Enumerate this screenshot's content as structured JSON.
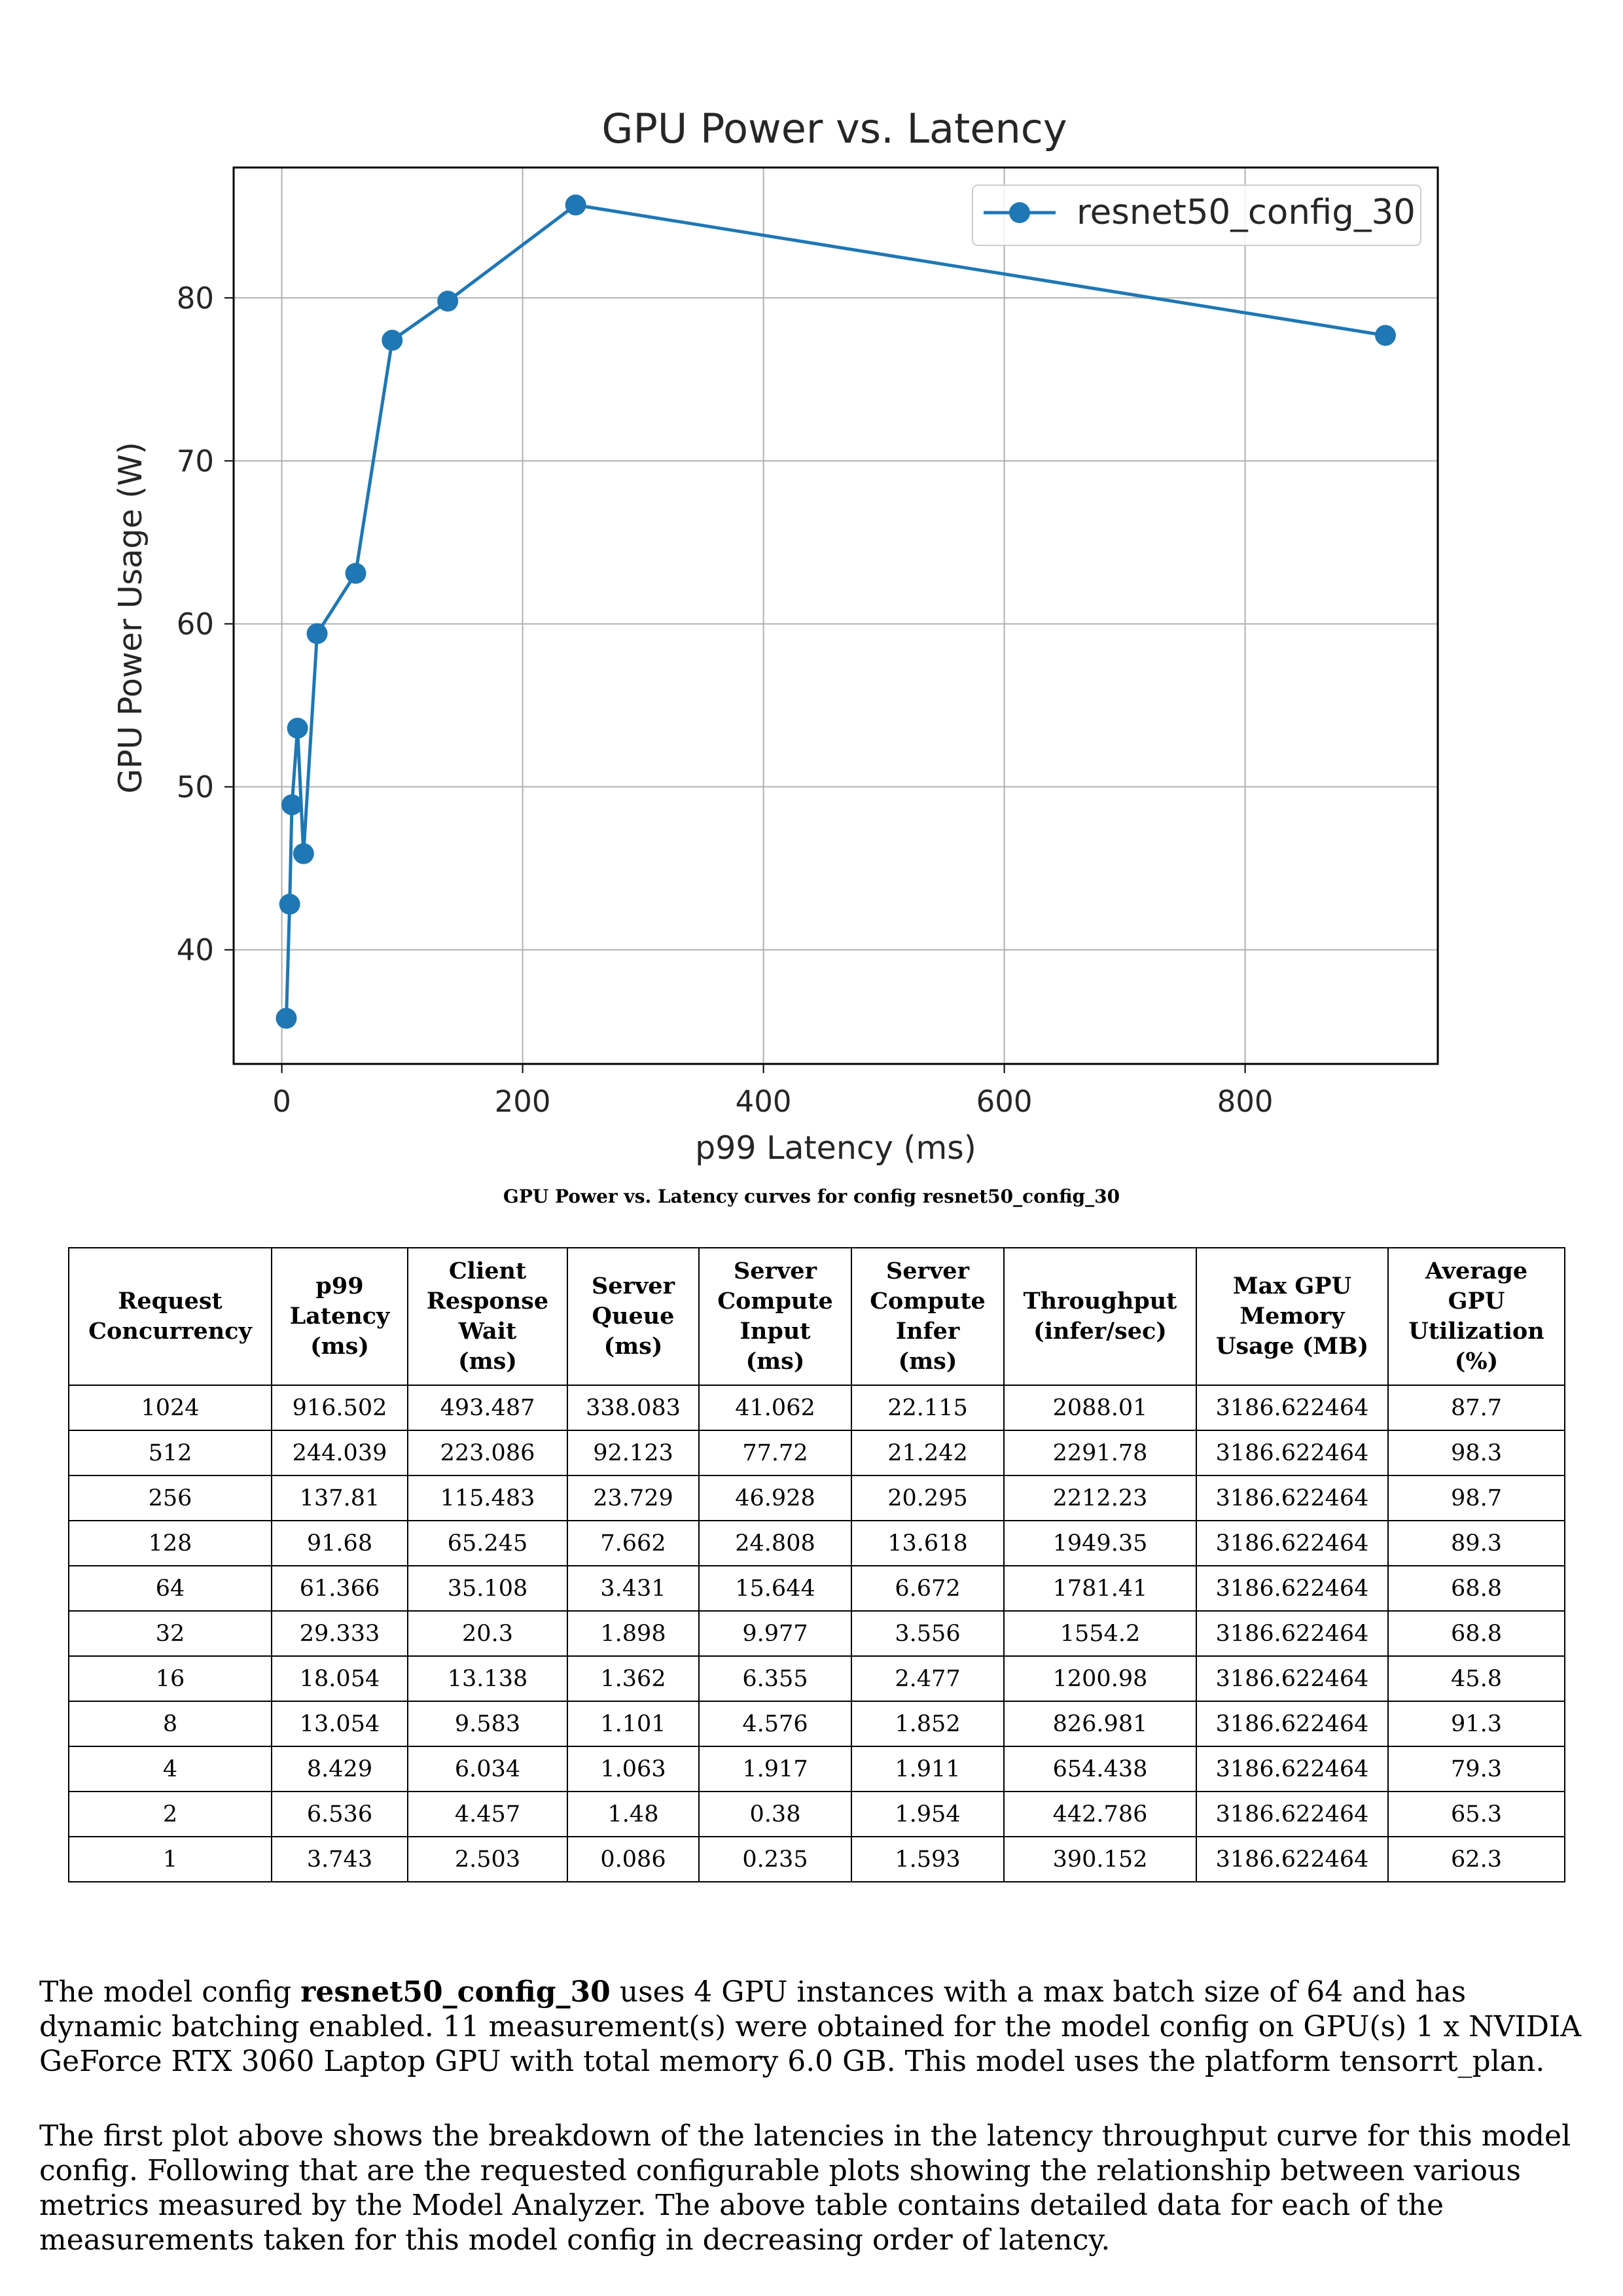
{
  "chart_data": {
    "type": "line",
    "title": "GPU Power vs. Latency",
    "xlabel": "p99 Latency (ms)",
    "ylabel": "GPU Power Usage (W)",
    "xlim": [
      -40,
      960
    ],
    "ylim": [
      33,
      88
    ],
    "xticks": [
      0,
      200,
      400,
      600,
      800
    ],
    "yticks": [
      40,
      50,
      60,
      70,
      80
    ],
    "grid": true,
    "legend_position": "top-right",
    "series": [
      {
        "name": "resnet50_config_30",
        "color": "#1f77b4",
        "points": [
          [
            3.743,
            35.8
          ],
          [
            6.536,
            42.8
          ],
          [
            8.429,
            48.9
          ],
          [
            13.054,
            53.6
          ],
          [
            18.054,
            45.9
          ],
          [
            29.333,
            59.4
          ],
          [
            61.366,
            63.1
          ],
          [
            91.68,
            77.4
          ],
          [
            137.81,
            79.8
          ],
          [
            244.039,
            85.7
          ],
          [
            916.502,
            77.7
          ]
        ]
      }
    ]
  },
  "caption": "GPU Power vs. Latency curves for config resnet50_config_30",
  "table": {
    "headers": [
      [
        "Request",
        "Concurrency"
      ],
      [
        "p99",
        "Latency",
        "(ms)"
      ],
      [
        "Client",
        "Response",
        "Wait",
        "(ms)"
      ],
      [
        "Server",
        "Queue",
        "(ms)"
      ],
      [
        "Server",
        "Compute",
        "Input",
        "(ms)"
      ],
      [
        "Server",
        "Compute",
        "Infer",
        "(ms)"
      ],
      [
        "Throughput",
        "(infer/sec)"
      ],
      [
        "Max GPU",
        "Memory",
        "Usage (MB)"
      ],
      [
        "Average",
        "GPU",
        "Utilization",
        "(%)"
      ]
    ],
    "rows": [
      [
        "1024",
        "916.502",
        "493.487",
        "338.083",
        "41.062",
        "22.115",
        "2088.01",
        "3186.622464",
        "87.7"
      ],
      [
        "512",
        "244.039",
        "223.086",
        "92.123",
        "77.72",
        "21.242",
        "2291.78",
        "3186.622464",
        "98.3"
      ],
      [
        "256",
        "137.81",
        "115.483",
        "23.729",
        "46.928",
        "20.295",
        "2212.23",
        "3186.622464",
        "98.7"
      ],
      [
        "128",
        "91.68",
        "65.245",
        "7.662",
        "24.808",
        "13.618",
        "1949.35",
        "3186.622464",
        "89.3"
      ],
      [
        "64",
        "61.366",
        "35.108",
        "3.431",
        "15.644",
        "6.672",
        "1781.41",
        "3186.622464",
        "68.8"
      ],
      [
        "32",
        "29.333",
        "20.3",
        "1.898",
        "9.977",
        "3.556",
        "1554.2",
        "3186.622464",
        "68.8"
      ],
      [
        "16",
        "18.054",
        "13.138",
        "1.362",
        "6.355",
        "2.477",
        "1200.98",
        "3186.622464",
        "45.8"
      ],
      [
        "8",
        "13.054",
        "9.583",
        "1.101",
        "4.576",
        "1.852",
        "826.981",
        "3186.622464",
        "91.3"
      ],
      [
        "4",
        "8.429",
        "6.034",
        "1.063",
        "1.917",
        "1.911",
        "654.438",
        "3186.622464",
        "79.3"
      ],
      [
        "2",
        "6.536",
        "4.457",
        "1.48",
        "0.38",
        "1.954",
        "442.786",
        "3186.622464",
        "65.3"
      ],
      [
        "1",
        "3.743",
        "2.503",
        "0.086",
        "0.235",
        "1.593",
        "390.152",
        "3186.622464",
        "62.3"
      ]
    ]
  },
  "paragraph1": {
    "before": "The model config ",
    "bold": "resnet50_config_30",
    "after": " uses 4 GPU instances with a max batch size of 64 and has dynamic batching enabled. 11 measurement(s) were obtained for the model config on GPU(s) 1 x NVIDIA GeForce RTX 3060 Laptop GPU with total memory 6.0 GB. This model uses the platform tensorrt_plan."
  },
  "paragraph2": "The first plot above shows the breakdown of the latencies in the latency throughput curve for this model config. Following that are the requested configurable plots showing the relationship between various metrics measured by the Model Analyzer. The above table contains detailed data for each of the measurements taken for this model config in decreasing order of latency."
}
